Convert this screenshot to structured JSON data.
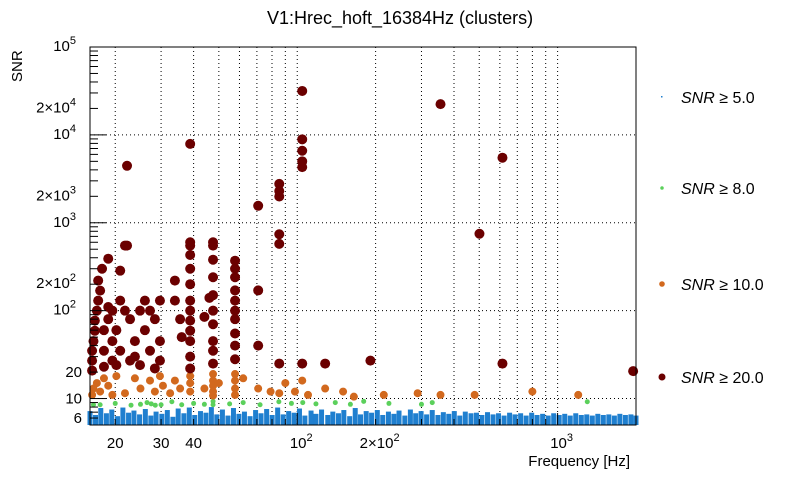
{
  "chart_data": {
    "type": "scatter",
    "title": "V1:Hrec_hoft_16384Hz (clusters)",
    "xlabel": "Frequency [Hz]",
    "ylabel": "SNR",
    "xscale": "log",
    "yscale": "log",
    "xlim": [
      16,
      2000
    ],
    "ylim": [
      5,
      100000
    ],
    "grid": true,
    "legend_position": "right",
    "x_ticks": [
      {
        "value": 20,
        "label": "20"
      },
      {
        "value": 30,
        "label": "30"
      },
      {
        "value": 40,
        "label": "40"
      },
      {
        "value": 100,
        "label": "10",
        "exp": "2"
      },
      {
        "value": 200,
        "label": "2×10",
        "exp": "2"
      },
      {
        "value": 1000,
        "label": "10",
        "exp": "3"
      }
    ],
    "y_ticks": [
      {
        "value": 6,
        "label": "6"
      },
      {
        "value": 10,
        "label": "10"
      },
      {
        "value": 20,
        "label": "20"
      },
      {
        "value": 100,
        "label": "10",
        "exp": "2"
      },
      {
        "value": 200,
        "label": "2×10",
        "exp": "2"
      },
      {
        "value": 1000,
        "label": "10",
        "exp": "3"
      },
      {
        "value": 2000,
        "label": "2×10",
        "exp": "3"
      },
      {
        "value": 10000,
        "label": "10",
        "exp": "4"
      },
      {
        "value": 20000,
        "label": "2×10",
        "exp": "4"
      },
      {
        "value": 100000,
        "label": "10",
        "exp": "5"
      }
    ],
    "series": [
      {
        "name": "SNR ≥ 5.0",
        "label_prefix": "SNR",
        "label_suffix": "≥ 5.0",
        "color": "#1f7fcf",
        "marker": "bar",
        "points": [
          [
            16,
            7.2
          ],
          [
            16.8,
            6.5
          ],
          [
            17.6,
            7.8
          ],
          [
            18.5,
            6.8
          ],
          [
            19.4,
            7.5
          ],
          [
            20.4,
            6.3
          ],
          [
            21.4,
            7.9
          ],
          [
            22.5,
            6.9
          ],
          [
            23.6,
            7.3
          ],
          [
            24.8,
            6.6
          ],
          [
            26.1,
            7.6
          ],
          [
            27.4,
            6.4
          ],
          [
            28.7,
            7.1
          ],
          [
            30.2,
            6.7
          ],
          [
            31.7,
            7.4
          ],
          [
            33.3,
            6.2
          ],
          [
            34.9,
            7.7
          ],
          [
            36.7,
            6.8
          ],
          [
            38.5,
            7.9
          ],
          [
            40.4,
            6.5
          ],
          [
            42.5,
            7.2
          ],
          [
            44.6,
            6.9
          ],
          [
            46.8,
            8
          ],
          [
            49.1,
            6.6
          ],
          [
            51.6,
            7.5
          ],
          [
            54.2,
            6.4
          ],
          [
            56.9,
            7.8
          ],
          [
            59.7,
            6.7
          ],
          [
            62.7,
            7.1
          ],
          [
            65.9,
            6.3
          ],
          [
            69.2,
            7.4
          ],
          [
            72.6,
            6.8
          ],
          [
            76.3,
            7.6
          ],
          [
            80.1,
            6.5
          ],
          [
            84.1,
            7.9
          ],
          [
            88.3,
            6.6
          ],
          [
            92.7,
            7.2
          ],
          [
            97.3,
            6.9
          ],
          [
            102,
            7.7
          ],
          [
            107,
            6.4
          ],
          [
            113,
            7.3
          ],
          [
            118,
            6.7
          ],
          [
            124,
            7.5
          ],
          [
            131,
            6.5
          ],
          [
            137,
            7.1
          ],
          [
            144,
            6.8
          ],
          [
            151,
            7.4
          ],
          [
            159,
            6.3
          ],
          [
            167,
            7.8
          ],
          [
            175,
            6.6
          ],
          [
            184,
            7.2
          ],
          [
            193,
            6.9
          ],
          [
            203,
            7.4
          ],
          [
            213,
            6.5
          ],
          [
            224,
            7.1
          ],
          [
            235,
            6.7
          ],
          [
            246,
            7.3
          ],
          [
            259,
            6.4
          ],
          [
            272,
            7.5
          ],
          [
            285,
            6.8
          ],
          [
            299,
            7.2
          ],
          [
            314,
            6.6
          ],
          [
            330,
            7.4
          ],
          [
            347,
            6.5
          ],
          [
            364,
            7.0
          ],
          [
            382,
            6.7
          ],
          [
            401,
            7.2
          ],
          [
            421,
            6.4
          ],
          [
            442,
            7.1
          ],
          [
            465,
            6.8
          ],
          [
            488,
            6.9
          ],
          [
            512,
            6.5
          ],
          [
            538,
            7.0
          ],
          [
            565,
            6.6
          ],
          [
            593,
            6.8
          ],
          [
            623,
            6.4
          ],
          [
            654,
            6.9
          ],
          [
            686,
            6.6
          ],
          [
            721,
            6.8
          ],
          [
            757,
            6.4
          ],
          [
            795,
            6.9
          ],
          [
            834,
            6.5
          ],
          [
            876,
            6.7
          ],
          [
            920,
            6.4
          ],
          [
            966,
            6.8
          ],
          [
            1014,
            6.5
          ],
          [
            1065,
            6.7
          ],
          [
            1118,
            6.4
          ],
          [
            1174,
            6.8
          ],
          [
            1233,
            6.5
          ],
          [
            1294,
            6.6
          ],
          [
            1359,
            6.4
          ],
          [
            1427,
            6.7
          ],
          [
            1498,
            6.5
          ],
          [
            1573,
            6.6
          ],
          [
            1652,
            6.4
          ],
          [
            1734,
            6.7
          ],
          [
            1821,
            6.5
          ],
          [
            1912,
            6.6
          ],
          [
            2000,
            6.4
          ]
        ]
      },
      {
        "name": "SNR ≥ 8.0",
        "label_prefix": "SNR",
        "label_suffix": "≥ 8.0",
        "color": "#5bd05b",
        "marker": "circle-small",
        "points": [
          [
            16.5,
            8.5
          ],
          [
            17.5,
            8.5
          ],
          [
            20,
            8.8
          ],
          [
            23,
            8.4
          ],
          [
            25,
            8.6
          ],
          [
            26.5,
            9
          ],
          [
            27.5,
            8.7
          ],
          [
            28.5,
            8.4
          ],
          [
            30,
            8.5
          ],
          [
            33,
            9.2
          ],
          [
            36,
            8.5
          ],
          [
            40,
            8.8
          ],
          [
            44,
            8.6
          ],
          [
            47.5,
            9.3
          ],
          [
            47.5,
            8.5
          ],
          [
            55,
            8.7
          ],
          [
            62,
            9
          ],
          [
            72,
            8.5
          ],
          [
            85,
            9.2
          ],
          [
            95,
            8.8
          ],
          [
            105,
            9
          ],
          [
            118,
            8.7
          ],
          [
            140,
            9
          ],
          [
            160,
            8.6
          ],
          [
            180,
            9.3
          ],
          [
            225,
            8.8
          ],
          [
            300,
            8.6
          ],
          [
            330,
            9
          ],
          [
            1300,
            9.2
          ]
        ]
      },
      {
        "name": "SNR ≥ 10.0",
        "label_prefix": "SNR",
        "label_suffix": "≥ 10.0",
        "color": "#d2691e",
        "marker": "circle-medium",
        "points": [
          [
            16.3,
            11
          ],
          [
            16.5,
            13
          ],
          [
            17,
            15
          ],
          [
            17.5,
            12
          ],
          [
            18.1,
            17
          ],
          [
            18.8,
            14
          ],
          [
            19.5,
            11
          ],
          [
            20.2,
            18
          ],
          [
            21.8,
            11.5
          ],
          [
            23.8,
            17
          ],
          [
            25,
            13
          ],
          [
            27.2,
            16
          ],
          [
            28.4,
            12
          ],
          [
            29.7,
            18
          ],
          [
            30.5,
            14
          ],
          [
            32.5,
            11.5
          ],
          [
            33.9,
            16
          ],
          [
            35.5,
            13
          ],
          [
            38.8,
            18
          ],
          [
            38.8,
            12
          ],
          [
            38.8,
            15
          ],
          [
            44,
            13
          ],
          [
            47.5,
            19
          ],
          [
            47.5,
            16
          ],
          [
            47.5,
            14
          ],
          [
            47.5,
            12
          ],
          [
            47.5,
            10.8
          ],
          [
            50,
            15
          ],
          [
            57.7,
            19
          ],
          [
            57.7,
            16
          ],
          [
            57.7,
            13
          ],
          [
            57.7,
            11
          ],
          [
            62,
            17
          ],
          [
            70.8,
            13
          ],
          [
            79,
            12
          ],
          [
            85.3,
            11.5
          ],
          [
            90,
            15
          ],
          [
            98,
            12
          ],
          [
            104.5,
            16
          ],
          [
            110,
            11
          ],
          [
            128,
            13
          ],
          [
            150,
            12
          ],
          [
            165,
            10.5
          ],
          [
            215,
            11
          ],
          [
            290,
            11.5
          ],
          [
            355,
            11
          ],
          [
            480,
            11
          ],
          [
            800,
            12
          ],
          [
            1200,
            11
          ]
        ]
      },
      {
        "name": "SNR ≥ 20.0",
        "label_prefix": "SNR",
        "label_suffix": "≥ 20.0",
        "color": "#6b0000",
        "marker": "circle-large",
        "points": [
          [
            16.3,
            20.8
          ],
          [
            16.3,
            27
          ],
          [
            16.3,
            35
          ],
          [
            16.5,
            45
          ],
          [
            16.7,
            59
          ],
          [
            16.7,
            77
          ],
          [
            17,
            100
          ],
          [
            17.2,
            130
          ],
          [
            17.5,
            169
          ],
          [
            17.2,
            220
          ],
          [
            17.8,
            300
          ],
          [
            18.1,
            35
          ],
          [
            18.1,
            60
          ],
          [
            18.8,
            80
          ],
          [
            18.8,
            110
          ],
          [
            18.1,
            23
          ],
          [
            18.8,
            390
          ],
          [
            19.5,
            27
          ],
          [
            19.5,
            45
          ],
          [
            19.5,
            100
          ],
          [
            20.2,
            60
          ],
          [
            20.2,
            24
          ],
          [
            20.9,
            35
          ],
          [
            20.9,
            130
          ],
          [
            20.9,
            285
          ],
          [
            21.8,
            550
          ],
          [
            22.2,
            550
          ],
          [
            22.2,
            4450
          ],
          [
            21.8,
            100
          ],
          [
            22.8,
            80
          ],
          [
            22.8,
            27
          ],
          [
            23.8,
            45
          ],
          [
            23.8,
            30
          ],
          [
            24.9,
            100
          ],
          [
            24.9,
            24
          ],
          [
            26,
            60
          ],
          [
            26,
            130
          ],
          [
            27.2,
            35
          ],
          [
            27.2,
            100
          ],
          [
            28.4,
            22
          ],
          [
            28.4,
            80
          ],
          [
            29.7,
            130
          ],
          [
            29.7,
            45
          ],
          [
            29.7,
            27
          ],
          [
            33.9,
            130
          ],
          [
            33.9,
            220
          ],
          [
            35.5,
            80
          ],
          [
            36,
            50
          ],
          [
            38.8,
            7900
          ],
          [
            38.8,
            600
          ],
          [
            38.8,
            550
          ],
          [
            38.8,
            430
          ],
          [
            38.8,
            300
          ],
          [
            38.8,
            200
          ],
          [
            38.8,
            130
          ],
          [
            38.8,
            100
          ],
          [
            38.8,
            77
          ],
          [
            38.8,
            59
          ],
          [
            38.8,
            45
          ],
          [
            38.8,
            30
          ],
          [
            38.8,
            22
          ],
          [
            44,
            85
          ],
          [
            46,
            140
          ],
          [
            47.5,
            600
          ],
          [
            47.5,
            550
          ],
          [
            47.5,
            380
          ],
          [
            47.5,
            240
          ],
          [
            47.5,
            150
          ],
          [
            47.5,
            100
          ],
          [
            47.5,
            70
          ],
          [
            47.5,
            45
          ],
          [
            47.5,
            35
          ],
          [
            47.5,
            25
          ],
          [
            57.7,
            370
          ],
          [
            57.7,
            300
          ],
          [
            57.7,
            240
          ],
          [
            57.7,
            170
          ],
          [
            57.7,
            130
          ],
          [
            57.7,
            100
          ],
          [
            57.7,
            80
          ],
          [
            57.7,
            55
          ],
          [
            57.7,
            40
          ],
          [
            57.7,
            28
          ],
          [
            70.8,
            1560
          ],
          [
            70.8,
            170
          ],
          [
            70.8,
            40
          ],
          [
            85.3,
            2770
          ],
          [
            85.3,
            2300
          ],
          [
            85.3,
            1990
          ],
          [
            85.3,
            740
          ],
          [
            85.3,
            575
          ],
          [
            85.3,
            25
          ],
          [
            104.5,
            31600
          ],
          [
            104.5,
            8900
          ],
          [
            104.5,
            6600
          ],
          [
            104.5,
            5000
          ],
          [
            104.5,
            4300
          ],
          [
            104.5,
            25
          ],
          [
            128,
            25
          ],
          [
            191,
            27
          ],
          [
            355,
            22400
          ],
          [
            501,
            750
          ],
          [
            614,
            5500
          ],
          [
            614,
            25
          ],
          [
            1950,
            20.5
          ]
        ]
      }
    ]
  }
}
